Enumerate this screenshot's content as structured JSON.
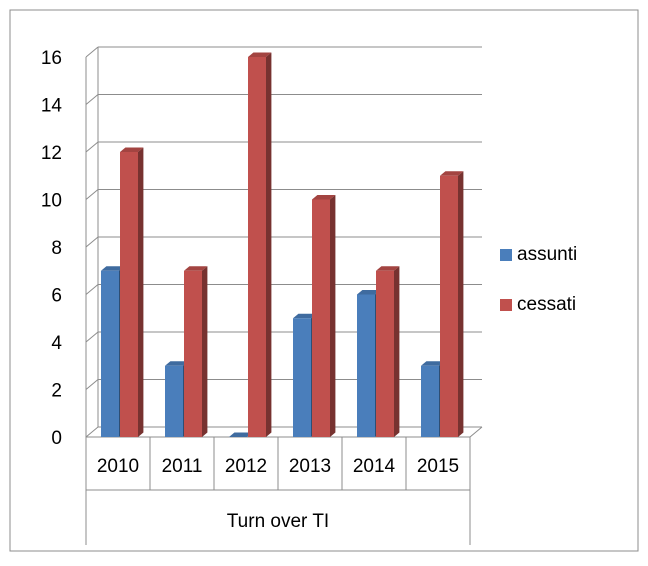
{
  "chart_data": {
    "type": "bar",
    "categories": [
      "2010",
      "2011",
      "2012",
      "2013",
      "2014",
      "2015"
    ],
    "series": [
      {
        "name": "assunti",
        "color": "#4a7ebb",
        "values": [
          7,
          3,
          0,
          5,
          6,
          3
        ]
      },
      {
        "name": "cessati",
        "color": "#c0504d",
        "values": [
          12,
          7,
          16,
          10,
          7,
          11
        ]
      }
    ],
    "group_label": "Turn over TI",
    "ylim": [
      0,
      16
    ],
    "yticks": [
      0,
      2,
      4,
      6,
      8,
      10,
      12,
      14,
      16
    ],
    "grid": true,
    "legend_position": "right",
    "style": "3d-clustered-column"
  }
}
